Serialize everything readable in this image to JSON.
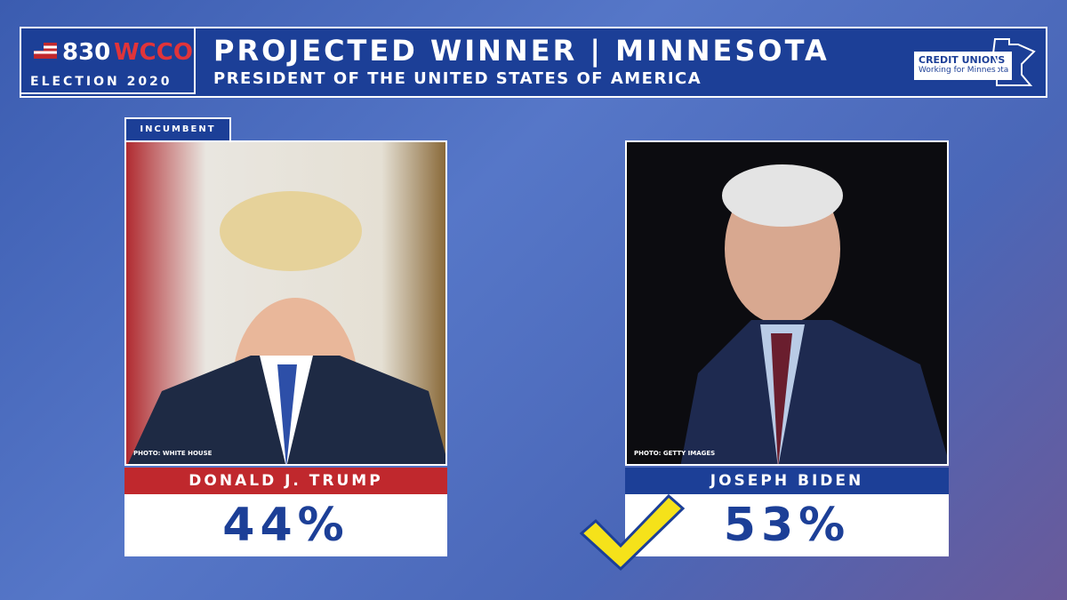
{
  "header": {
    "station_number": "830",
    "station_name": "WCCO",
    "event": "ELECTION 2020",
    "title": "PROJECTED WINNER | MINNESOTA",
    "subtitle": "PRESIDENT OF THE UNITED STATES OF AMERICA",
    "sponsor": {
      "name": "CREDIT UNIONS",
      "tagline": "Working for Minnesota"
    }
  },
  "candidates": [
    {
      "tag": "INCUMBENT",
      "photo_credit": "PHOTO: WHITE HOUSE",
      "name": "DONALD J. TRUMP",
      "share": "44%"
    },
    {
      "photo_credit": "PHOTO: GETTY IMAGES",
      "name": "JOSEPH BIDEN",
      "share": "53%"
    }
  ]
}
